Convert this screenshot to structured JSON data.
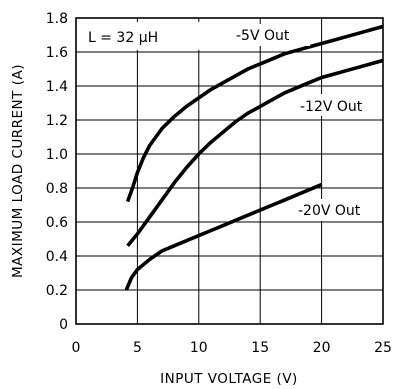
{
  "chart_data": {
    "type": "line",
    "title": "",
    "xlabel": "INPUT VOLTAGE (V)",
    "ylabel": "MAXIMUM LOAD CURRENT (A)",
    "xlim": [
      0,
      25
    ],
    "ylim": [
      0,
      1.8
    ],
    "x_ticks": [
      0,
      5,
      10,
      15,
      20,
      25
    ],
    "x_tick_labels": [
      "0",
      "5",
      "10",
      "15",
      "20",
      "25"
    ],
    "y_ticks": [
      0,
      0.2,
      0.4,
      0.6,
      0.8,
      1.0,
      1.2,
      1.4,
      1.6,
      1.8
    ],
    "y_tick_labels": [
      "0",
      "0.2",
      "0.4",
      "0.6",
      "0.8",
      "1.0",
      "1.2",
      "1.4",
      "1.6",
      "1.8"
    ],
    "grid": true,
    "annotation": "L = 32 μH",
    "series": [
      {
        "name": "-5V Out",
        "points": [
          [
            4.2,
            0.72
          ],
          [
            4.6,
            0.8
          ],
          [
            5,
            0.89
          ],
          [
            5.5,
            0.98
          ],
          [
            6,
            1.05
          ],
          [
            7,
            1.15
          ],
          [
            8,
            1.22
          ],
          [
            9,
            1.28
          ],
          [
            10,
            1.33
          ],
          [
            11,
            1.38
          ],
          [
            12,
            1.42
          ],
          [
            13,
            1.46
          ],
          [
            14,
            1.5
          ],
          [
            15,
            1.53
          ],
          [
            16,
            1.56
          ],
          [
            17,
            1.59
          ],
          [
            18,
            1.61
          ],
          [
            19,
            1.63
          ],
          [
            20,
            1.65
          ],
          [
            21,
            1.67
          ],
          [
            22,
            1.69
          ],
          [
            23,
            1.71
          ],
          [
            24,
            1.73
          ],
          [
            25,
            1.75
          ]
        ]
      },
      {
        "name": "-12V Out",
        "points": [
          [
            4.2,
            0.46
          ],
          [
            5,
            0.53
          ],
          [
            6,
            0.63
          ],
          [
            7,
            0.73
          ],
          [
            8,
            0.83
          ],
          [
            9,
            0.92
          ],
          [
            10,
            1.0
          ],
          [
            11,
            1.07
          ],
          [
            12,
            1.13
          ],
          [
            13,
            1.19
          ],
          [
            14,
            1.24
          ],
          [
            15,
            1.28
          ],
          [
            16,
            1.32
          ],
          [
            17,
            1.36
          ],
          [
            18,
            1.39
          ],
          [
            19,
            1.42
          ],
          [
            20,
            1.45
          ],
          [
            21,
            1.47
          ],
          [
            22,
            1.49
          ],
          [
            23,
            1.51
          ],
          [
            24,
            1.53
          ],
          [
            25,
            1.55
          ]
        ]
      },
      {
        "name": "-20V Out",
        "points": [
          [
            4.1,
            0.2
          ],
          [
            4.5,
            0.27
          ],
          [
            5,
            0.32
          ],
          [
            5.5,
            0.35
          ],
          [
            6,
            0.38
          ],
          [
            7,
            0.43
          ],
          [
            8,
            0.46
          ],
          [
            9,
            0.49
          ],
          [
            10,
            0.52
          ],
          [
            11,
            0.55
          ],
          [
            12,
            0.58
          ],
          [
            13,
            0.61
          ],
          [
            14,
            0.64
          ],
          [
            15,
            0.67
          ],
          [
            16,
            0.7
          ],
          [
            17,
            0.73
          ],
          [
            18,
            0.76
          ],
          [
            19,
            0.79
          ],
          [
            20,
            0.82
          ]
        ]
      }
    ],
    "series_labels": [
      "-5V Out",
      "-12V Out",
      "-20V Out"
    ]
  }
}
